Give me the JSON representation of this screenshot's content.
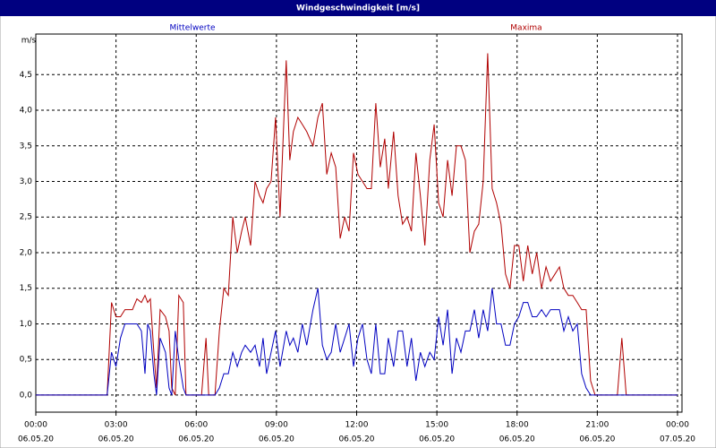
{
  "chart_data": {
    "type": "line",
    "title": "Windgeschwindigkeit [m/s]",
    "y_label": "m/s",
    "xlim": [
      0,
      1440
    ],
    "xticks": [
      {
        "value": 0,
        "label": "00:00"
      },
      {
        "value": 180,
        "label": "03:00"
      },
      {
        "value": 360,
        "label": "06:00"
      },
      {
        "value": 540,
        "label": "09:00"
      },
      {
        "value": 720,
        "label": "12:00"
      },
      {
        "value": 900,
        "label": "15:00"
      },
      {
        "value": 1080,
        "label": "18:00"
      },
      {
        "value": 1260,
        "label": "21:00"
      },
      {
        "value": 1440,
        "label": "00:00"
      }
    ],
    "xtick_dates": [
      "06.05.20",
      "06.05.20",
      "06.05.20",
      "06.05.20",
      "06.05.20",
      "06.05.20",
      "06.05.20",
      "06.05.20",
      "07.05.20"
    ],
    "ylim": [
      -0.24,
      5.07
    ],
    "yticks": [
      {
        "value": 0,
        "label": "0,0"
      },
      {
        "value": 0.5,
        "label": "0,5"
      },
      {
        "value": 1,
        "label": "1,0"
      },
      {
        "value": 1.5,
        "label": "1,5"
      },
      {
        "value": 2,
        "label": "2,0"
      },
      {
        "value": 2.5,
        "label": "2,5"
      },
      {
        "value": 3,
        "label": "3,0"
      },
      {
        "value": 3.5,
        "label": "3,5"
      },
      {
        "value": 4,
        "label": "4,0"
      },
      {
        "value": 4.5,
        "label": "4,5"
      }
    ],
    "grid": true,
    "x": [
      0,
      160,
      170,
      180,
      190,
      200,
      217,
      227,
      237,
      245,
      251,
      257,
      265,
      271,
      279,
      291,
      299,
      305,
      313,
      321,
      331,
      337,
      372,
      382,
      388,
      402,
      412,
      422,
      432,
      442,
      452,
      462,
      470,
      482,
      492,
      502,
      510,
      518,
      528,
      538,
      548,
      562,
      570,
      578,
      588,
      598,
      608,
      622,
      633,
      643,
      653,
      663,
      673,
      683,
      693,
      703,
      713,
      723,
      733,
      743,
      753,
      763,
      773,
      783,
      791,
      803,
      813,
      823,
      833,
      843,
      853,
      863,
      873,
      884,
      894,
      904,
      914,
      924,
      934,
      944,
      954,
      964,
      974,
      984,
      994,
      1004,
      1014,
      1024,
      1034,
      1044,
      1054,
      1064,
      1074,
      1084,
      1094,
      1104,
      1114,
      1124,
      1135,
      1145,
      1155,
      1165,
      1175,
      1185,
      1195,
      1205,
      1215,
      1225,
      1235,
      1245,
      1255,
      1305,
      1315,
      1325,
      1440
    ],
    "series": [
      {
        "name": "Mittelwerte",
        "color": "#0000c0",
        "values": [
          0,
          0,
          0.6,
          0.4,
          0.8,
          1.0,
          1.0,
          1.0,
          0.9,
          0.3,
          1.0,
          0.9,
          0.3,
          0,
          0.8,
          0.6,
          0.1,
          0,
          0.9,
          0.5,
          0.1,
          0,
          0,
          0,
          0,
          0,
          0.1,
          0.3,
          0.3,
          0.6,
          0.4,
          0.6,
          0.7,
          0.6,
          0.7,
          0.4,
          0.8,
          0.3,
          0.6,
          0.9,
          0.4,
          0.9,
          0.7,
          0.8,
          0.6,
          1.0,
          0.7,
          1.2,
          1.5,
          0.7,
          0.5,
          0.6,
          1.0,
          0.6,
          0.8,
          1.0,
          0.4,
          0.8,
          1.0,
          0.5,
          0.3,
          1.0,
          0.3,
          0.3,
          0.8,
          0.4,
          0.9,
          0.9,
          0.4,
          0.8,
          0.2,
          0.6,
          0.4,
          0.6,
          0.5,
          1.1,
          0.7,
          1.2,
          0.3,
          0.8,
          0.6,
          0.9,
          0.9,
          1.2,
          0.8,
          1.2,
          0.9,
          1.5,
          1.0,
          1.0,
          0.7,
          0.7,
          1.0,
          1.1,
          1.3,
          1.3,
          1.1,
          1.1,
          1.2,
          1.1,
          1.2,
          1.2,
          1.2,
          0.9,
          1.1,
          0.9,
          1.0,
          0.3,
          0.1,
          0,
          0,
          0,
          0,
          0,
          0
        ]
      },
      {
        "name": "Maxima",
        "color": "#b00000",
        "values": [
          0,
          0,
          1.3,
          1.1,
          1.1,
          1.2,
          1.2,
          1.35,
          1.3,
          1.4,
          1.3,
          1.35,
          0.6,
          0.1,
          1.2,
          1.1,
          0.9,
          0.1,
          0,
          1.4,
          1.3,
          0,
          0,
          0.8,
          0,
          0,
          0.9,
          1.5,
          1.4,
          2.5,
          2.0,
          2.3,
          2.5,
          2.1,
          3.0,
          2.8,
          2.7,
          2.9,
          3.0,
          3.9,
          2.5,
          4.7,
          3.3,
          3.7,
          3.9,
          3.8,
          3.7,
          3.5,
          3.9,
          4.1,
          3.1,
          3.4,
          3.2,
          2.2,
          2.5,
          2.3,
          3.4,
          3.1,
          3.0,
          2.9,
          2.9,
          4.1,
          3.2,
          3.6,
          2.9,
          3.7,
          2.8,
          2.4,
          2.5,
          2.3,
          3.4,
          2.8,
          2.1,
          3.3,
          3.8,
          2.7,
          2.5,
          3.3,
          2.8,
          3.5,
          3.5,
          3.3,
          2.0,
          2.3,
          2.4,
          3.0,
          4.8,
          2.9,
          2.7,
          2.4,
          1.7,
          1.5,
          2.1,
          2.1,
          1.6,
          2.1,
          1.7,
          2.0,
          1.5,
          1.8,
          1.6,
          1.7,
          1.8,
          1.5,
          1.4,
          1.4,
          1.3,
          1.2,
          1.2,
          0.2,
          0,
          0,
          0.8,
          0,
          0
        ]
      }
    ]
  }
}
